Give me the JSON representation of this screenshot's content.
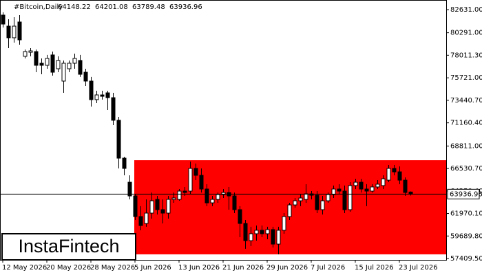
{
  "chart_data": {
    "type": "candlestick",
    "title": "#Bitcoin,Daily",
    "logo": "InstaFintech",
    "categories": [
      "12 May 2026",
      null,
      null,
      null,
      null,
      null,
      null,
      null,
      "20 May 2026",
      null,
      null,
      null,
      null,
      null,
      null,
      null,
      "28 May 2026",
      null,
      null,
      null,
      null,
      null,
      null,
      null,
      "5 Jun 2026",
      null,
      null,
      null,
      null,
      null,
      null,
      null,
      "13 Jun 2026",
      null,
      null,
      null,
      null,
      null,
      null,
      null,
      "21 Jun 2026",
      null,
      null,
      null,
      null,
      null,
      null,
      null,
      "29 Jun 2026",
      null,
      null,
      null,
      null,
      null,
      null,
      null,
      "7 Jul 2026",
      null,
      null,
      null,
      null,
      null,
      null,
      null,
      "15 Jul 2026",
      null,
      null,
      null,
      null,
      null,
      null,
      null,
      "23 Jul 2026",
      null,
      null
    ],
    "open": [
      82080,
      80960,
      79780,
      81380,
      77900,
      78310,
      78380,
      77200,
      76990,
      78040,
      76640,
      75390,
      76640,
      77200,
      77480,
      76290,
      75390,
      73510,
      73990,
      74200,
      73710,
      71420,
      67580,
      65140,
      63750,
      61660,
      60960,
      62010,
      63400,
      62360,
      62010,
      63400,
      63400,
      64240,
      64240,
      66540,
      65840,
      64450,
      63050,
      63400,
      63890,
      64100,
      63750,
      62360,
      60960,
      59220,
      59920,
      60270,
      59920,
      60340,
      58870,
      60270,
      61660,
      62840,
      63260,
      63400,
      63960,
      63820,
      62360,
      63260,
      63890,
      64450,
      64240,
      62360,
      64800,
      65140,
      64450,
      64240,
      64660,
      64800,
      65350,
      66540,
      66190,
      65350,
      64148.22
    ],
    "high": [
      82360,
      81660,
      81870,
      82080,
      78590,
      78730,
      78590,
      77690,
      78040,
      78380,
      77900,
      77480,
      77480,
      78170,
      78040,
      76640,
      75810,
      74410,
      74410,
      74410,
      74200,
      71760,
      67720,
      65840,
      63960,
      62710,
      63400,
      64100,
      63750,
      63400,
      63750,
      64100,
      64450,
      64660,
      67230,
      67030,
      66540,
      64940,
      63750,
      64100,
      64450,
      64660,
      64100,
      62710,
      61310,
      60620,
      60750,
      60750,
      60620,
      60620,
      60620,
      62010,
      63050,
      63540,
      63960,
      64940,
      64240,
      64240,
      63750,
      64100,
      64800,
      64940,
      64800,
      65140,
      65490,
      65490,
      64940,
      64940,
      65350,
      65840,
      66890,
      66890,
      66750,
      65630,
      64201.08
    ],
    "low": [
      80820,
      78730,
      79290,
      79080,
      77690,
      77900,
      76290,
      76080,
      76640,
      75940,
      76290,
      74200,
      76290,
      76640,
      75810,
      74900,
      72810,
      73160,
      73510,
      72460,
      70930,
      66540,
      65840,
      63400,
      61310,
      60270,
      60620,
      61450,
      61870,
      60960,
      61450,
      63050,
      63260,
      63750,
      63960,
      65350,
      64100,
      62710,
      62710,
      63050,
      63540,
      62360,
      62010,
      59570,
      58390,
      58660,
      59220,
      59570,
      59360,
      58520,
      57830,
      59920,
      61310,
      62570,
      62710,
      63050,
      63400,
      62010,
      61870,
      63050,
      63540,
      63960,
      62010,
      62150,
      64450,
      64100,
      62710,
      64100,
      64450,
      64450,
      65140,
      65840,
      64940,
      63750,
      63789.48
    ],
    "close": [
      81170,
      79780,
      80960,
      79570,
      78380,
      78450,
      76990,
      76990,
      77690,
      76290,
      77480,
      77200,
      77200,
      77690,
      76080,
      75390,
      73510,
      73990,
      73850,
      73710,
      71420,
      67580,
      66540,
      63750,
      61660,
      60750,
      62010,
      63260,
      62360,
      62010,
      63400,
      63540,
      64240,
      64100,
      66540,
      65840,
      64450,
      63050,
      63400,
      63890,
      64100,
      63750,
      62360,
      60960,
      59220,
      59920,
      60270,
      59920,
      60340,
      58870,
      60270,
      61660,
      62840,
      63260,
      63540,
      63960,
      63820,
      62360,
      63260,
      63890,
      64450,
      64240,
      62360,
      64800,
      65140,
      64450,
      64240,
      64660,
      64940,
      65490,
      66540,
      66190,
      65350,
      64100,
      63936.96
    ],
    "up_color": "#ffffff",
    "down_color": "#000000",
    "zone": {
      "top": 67370,
      "bottom": 57830,
      "color": "#ff0000"
    },
    "ylim": [
      57270,
      83400
    ],
    "yticks": [
      {
        "value": 82631.0,
        "label": "82631.00"
      },
      {
        "value": 80291.0,
        "label": "80291.00"
      },
      {
        "value": 78011.3,
        "label": "78011.30"
      },
      {
        "value": 75721.0,
        "label": "75721.00"
      },
      {
        "value": 73440.7,
        "label": "73440.70"
      },
      {
        "value": 71160.4,
        "label": "71160.40"
      },
      {
        "value": 68811.0,
        "label": "68811.00"
      },
      {
        "value": 66530.7,
        "label": "66530.70"
      },
      {
        "value": 64250.4,
        "label": "64250.40"
      },
      {
        "value": 61970.1,
        "label": "61970.10"
      },
      {
        "value": 59689.8,
        "label": "59689.80"
      },
      {
        "value": 57409.5,
        "label": "57409.50"
      }
    ]
  }
}
